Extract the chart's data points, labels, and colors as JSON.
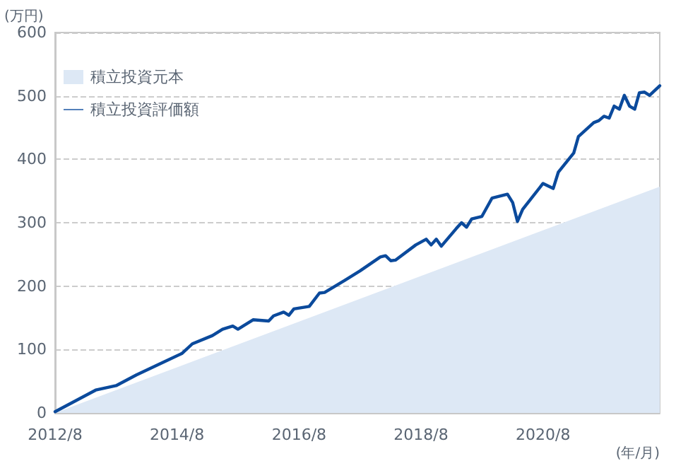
{
  "chart_data": {
    "type": "line",
    "ylabel": "(万円)",
    "xlabel": "(年/月)",
    "xlim": [
      "2012-08",
      "2022-07"
    ],
    "ylim": [
      0,
      600
    ],
    "yticks": [
      0,
      100,
      200,
      300,
      400,
      500,
      600
    ],
    "xticks": [
      {
        "value": "2012-08",
        "label": "2012/8"
      },
      {
        "value": "2014-08",
        "label": "2014/8"
      },
      {
        "value": "2016-08",
        "label": "2016/8"
      },
      {
        "value": "2018-08",
        "label": "2018/8"
      },
      {
        "value": "2020-08",
        "label": "2020/8"
      }
    ],
    "grid": "y",
    "legend": "top left",
    "marker": "none",
    "series": [
      {
        "name": "積立投資元本",
        "type": "area",
        "color": "#dde8f5",
        "x": [
          "2012-08",
          "2022-07"
        ],
        "values": [
          0,
          357
        ]
      },
      {
        "name": "積立投資評価額",
        "color": "#0b4a9c",
        "x": [
          "2012-08",
          "2013-04",
          "2013-08",
          "2013-12",
          "2014-09",
          "2014-11",
          "2015-03",
          "2015-05",
          "2015-07",
          "2015-08",
          "2015-11",
          "2016-02",
          "2016-03",
          "2016-05",
          "2016-06",
          "2016-07",
          "2016-10",
          "2016-12",
          "2017-01",
          "2017-05",
          "2017-08",
          "2017-12",
          "2018-01",
          "2018-02",
          "2018-03",
          "2018-07",
          "2018-09",
          "2018-10",
          "2018-11",
          "2018-12",
          "2019-03",
          "2019-04",
          "2019-05",
          "2019-06",
          "2019-08",
          "2019-10",
          "2020-01",
          "2020-02",
          "2020-03",
          "2020-04",
          "2020-08",
          "2020-10",
          "2020-11",
          "2021-02",
          "2021-03",
          "2021-06",
          "2021-07",
          "2021-08",
          "2021-09",
          "2021-10",
          "2021-11",
          "2021-12",
          "2022-01",
          "2022-02",
          "2022-03",
          "2022-04",
          "2022-05",
          "2022-07"
        ],
        "values": [
          2,
          36,
          43,
          60,
          94,
          109,
          122,
          132,
          137,
          132,
          147,
          145,
          153,
          159,
          154,
          164,
          168,
          189,
          190,
          209,
          224,
          246,
          248,
          240,
          241,
          265,
          274,
          265,
          274,
          263,
          291,
          300,
          293,
          306,
          310,
          339,
          345,
          332,
          302,
          321,
          362,
          354,
          380,
          410,
          436,
          458,
          461,
          468,
          465,
          484,
          479,
          501,
          484,
          479,
          505,
          506,
          501,
          516
        ]
      }
    ]
  }
}
